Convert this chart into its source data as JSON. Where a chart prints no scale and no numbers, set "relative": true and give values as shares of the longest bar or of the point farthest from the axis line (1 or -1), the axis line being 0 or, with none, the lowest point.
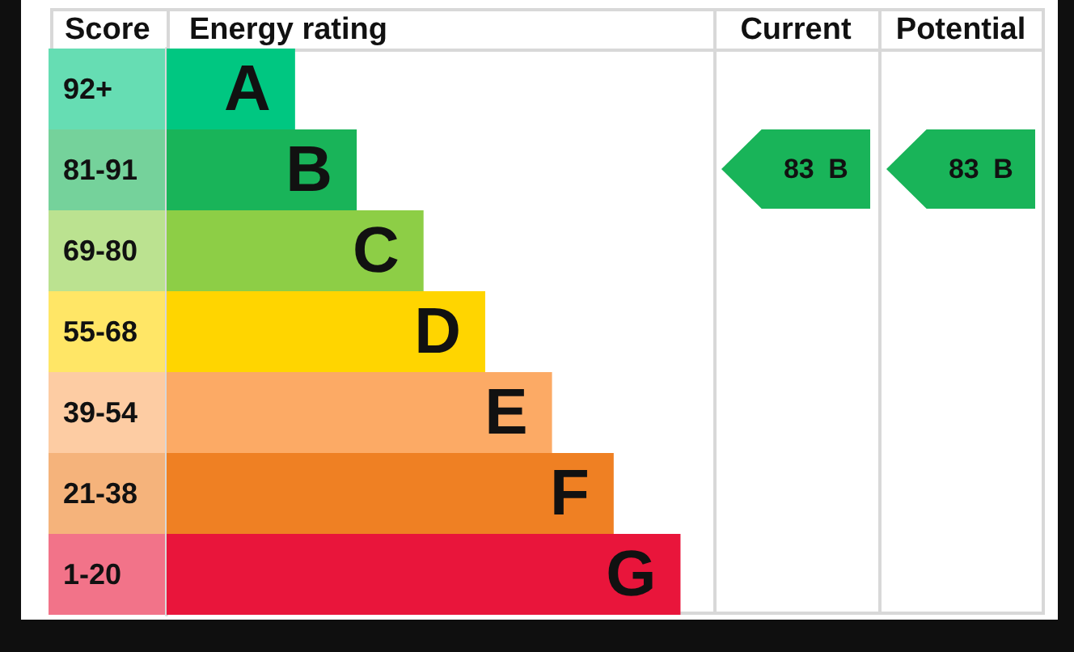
{
  "chart_data": {
    "type": "bar",
    "orientation": "horizontal",
    "relative": true,
    "xlabel": "Energy rating",
    "ylabel": "Score",
    "categories": [
      "92+",
      "81-91",
      "69-80",
      "55-68",
      "39-54",
      "21-38",
      "1-20"
    ],
    "values": [
      0.25,
      0.37,
      0.5,
      0.62,
      0.75,
      0.87,
      1
    ],
    "colors": [
      "#00c781",
      "#19b459",
      "#8dce46",
      "#ffd500",
      "#fcaa65",
      "#ef8023",
      "#e9153b"
    ],
    "annotations": [
      "Current",
      "Potential",
      "83 B",
      "83 B",
      {
        "text": "A",
        "x": 0.25,
        "y": "92+"
      },
      {
        "text": "B",
        "x": 0.37,
        "y": "81-91"
      },
      {
        "text": "C",
        "x": 0.5,
        "y": "69-80"
      },
      {
        "text": "D",
        "x": 0.62,
        "y": "55-68"
      },
      {
        "text": "E",
        "x": 0.75,
        "y": "39-54"
      },
      {
        "text": "F",
        "x": 0.87,
        "y": "21-38"
      },
      {
        "text": "G",
        "x": 1,
        "y": "1-20"
      }
    ]
  }
}
